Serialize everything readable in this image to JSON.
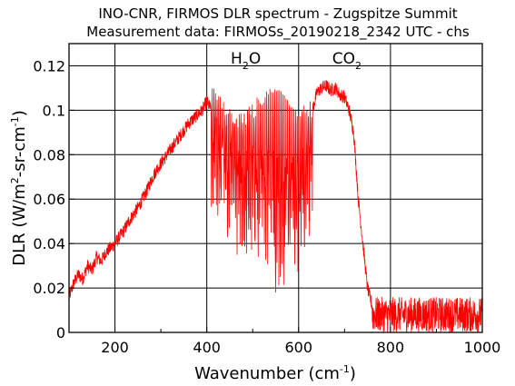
{
  "chart_data": {
    "type": "line",
    "title_line1": "INO-CNR, FIRMOS DLR spectrum - Zugspitze Summit",
    "title_line2": "Measurement data: FIRMOSs_20190218_2342 UTC - chs",
    "xlabel": {
      "base": "Wavenumber (cm",
      "sup": "-1",
      "end": ")"
    },
    "ylabel": {
      "p1": "DLR (W/m",
      "sup1": "2",
      "p2": "-sr-cm",
      "sup2": "-1",
      "p3": ")"
    },
    "xlim": [
      100,
      1000
    ],
    "ylim": [
      0,
      0.13
    ],
    "x_ticks": [
      200,
      400,
      600,
      800,
      1000
    ],
    "y_ticks": [
      0,
      0.02,
      0.04,
      0.06,
      0.08,
      0.1,
      0.12
    ],
    "x_tick_labels": [
      "200",
      "400",
      "600",
      "800",
      "1000"
    ],
    "y_tick_labels": [
      "0",
      "0.02",
      "0.04",
      "0.06",
      "0.08",
      "0.1",
      "0.12"
    ],
    "grid": true,
    "line_color": "#ff0000",
    "annotations": [
      {
        "text": "H",
        "sub": "2",
        "text2": "O",
        "x": 485,
        "y": 0.1235
      },
      {
        "text": "CO",
        "sub": "2",
        "text2": "",
        "x": 705,
        "y": 0.1235
      }
    ],
    "series": [
      {
        "x": [
          100,
          110,
          120,
          130,
          140,
          150,
          160,
          170,
          180,
          190,
          200,
          210,
          220,
          230,
          240,
          250,
          260,
          270,
          280,
          290,
          300,
          310,
          320,
          330,
          340,
          350,
          360,
          370,
          380,
          390,
          400,
          410,
          420,
          430,
          440,
          450,
          460,
          470,
          480,
          490,
          500,
          510,
          520,
          530,
          540,
          550,
          560,
          570,
          580,
          590,
          600,
          610,
          620,
          630,
          640,
          650,
          660,
          670,
          680,
          690,
          700,
          710,
          720,
          730,
          740,
          750,
          760,
          770,
          780,
          790,
          800,
          810,
          820,
          830,
          840,
          850,
          860,
          870,
          880,
          890,
          900,
          910,
          920,
          930,
          940,
          950,
          960,
          970,
          980,
          990,
          1000
        ],
        "y": [
          0.016,
          0.022,
          0.026,
          0.024,
          0.03,
          0.028,
          0.034,
          0.032,
          0.036,
          0.038,
          0.04,
          0.043,
          0.046,
          0.05,
          0.053,
          0.056,
          0.06,
          0.064,
          0.069,
          0.073,
          0.076,
          0.079,
          0.082,
          0.085,
          0.088,
          0.091,
          0.094,
          0.096,
          0.098,
          0.1,
          0.104,
          0.1,
          0.106,
          0.09,
          0.108,
          0.085,
          0.109,
          0.08,
          0.11,
          0.07,
          0.111,
          0.06,
          0.11,
          0.05,
          0.111,
          0.04,
          0.11,
          0.035,
          0.11,
          0.045,
          0.105,
          0.06,
          0.108,
          0.1,
          0.108,
          0.11,
          0.111,
          0.109,
          0.11,
          0.107,
          0.106,
          0.1,
          0.09,
          0.06,
          0.04,
          0.02,
          0.012,
          0.008,
          0.006,
          0.01,
          0.008,
          0.012,
          0.006,
          0.009,
          0.007,
          0.011,
          0.006,
          0.01,
          0.008,
          0.009,
          0.012,
          0.007,
          0.01,
          0.009,
          0.013,
          0.008,
          0.011,
          0.01,
          0.009,
          0.012,
          0.01
        ]
      }
    ]
  }
}
